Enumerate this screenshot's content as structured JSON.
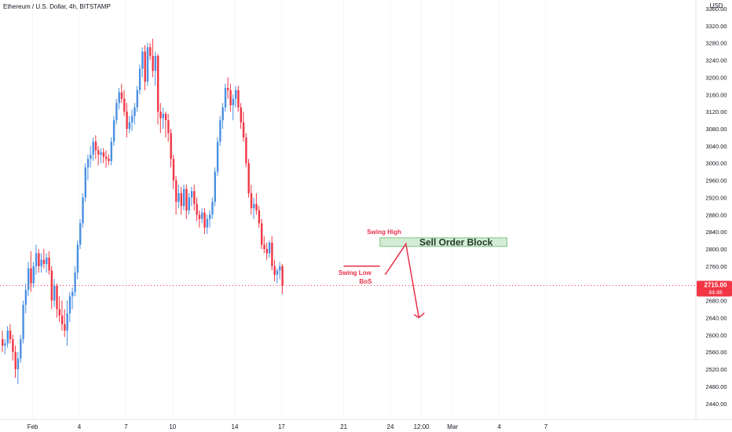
{
  "header": {
    "symbol_title": "Ethereum / U.S. Dollar, 4h, BITSTAMP",
    "currency": "USD"
  },
  "price_tag": {
    "price": "2715.00",
    "countdown": "44:46",
    "color": "#f23645"
  },
  "colors": {
    "up": "#2962ff",
    "up_candle": "#4a90e2",
    "down": "#f23645",
    "annotation": "#e8304a",
    "zone_fill": "#d4ecd6",
    "zone_border": "#7cc47f",
    "grid": "#f0f3fa",
    "axis_text": "#131722"
  },
  "chart_data": {
    "type": "candlestick",
    "title": "Ethereum / U.S. Dollar, 4h, BITSTAMP",
    "ylabel": "USD",
    "ylim": [
      2400,
      3380
    ],
    "grid": false,
    "y_ticks": [
      2440,
      2480,
      2520,
      2560,
      2600,
      2640,
      2680,
      2720,
      2760,
      2800,
      2840,
      2880,
      2920,
      2960,
      3000,
      3040,
      3080,
      3120,
      3160,
      3200,
      3240,
      3280,
      3320,
      3360
    ],
    "x_ticks": [
      {
        "label": "Feb",
        "candle": 12
      },
      {
        "label": "4",
        "candle": 30
      },
      {
        "label": "7",
        "candle": 48
      },
      {
        "label": "10",
        "candle": 66
      },
      {
        "label": "14",
        "candle": 90
      },
      {
        "label": "17",
        "candle": 108
      },
      {
        "label": "21",
        "candle": 132
      },
      {
        "label": "24",
        "candle": 150
      },
      {
        "label": "12:00",
        "candle": 162
      },
      {
        "label": "Mar",
        "candle": 174
      },
      {
        "label": "4",
        "candle": 192
      },
      {
        "label": "7",
        "candle": 210
      }
    ],
    "candles": [
      [
        2590,
        2610,
        2560,
        2575
      ],
      [
        2575,
        2590,
        2555,
        2580
      ],
      [
        2580,
        2620,
        2570,
        2610
      ],
      [
        2610,
        2625,
        2580,
        2590
      ],
      [
        2590,
        2600,
        2540,
        2560
      ],
      [
        2560,
        2575,
        2500,
        2520
      ],
      [
        2520,
        2560,
        2485,
        2545
      ],
      [
        2545,
        2600,
        2535,
        2590
      ],
      [
        2590,
        2680,
        2580,
        2670
      ],
      [
        2670,
        2720,
        2650,
        2705
      ],
      [
        2705,
        2770,
        2690,
        2755
      ],
      [
        2755,
        2795,
        2700,
        2720
      ],
      [
        2720,
        2770,
        2710,
        2760
      ],
      [
        2760,
        2810,
        2740,
        2790
      ],
      [
        2790,
        2800,
        2745,
        2760
      ],
      [
        2760,
        2790,
        2745,
        2775
      ],
      [
        2775,
        2800,
        2755,
        2765
      ],
      [
        2765,
        2790,
        2745,
        2780
      ],
      [
        2780,
        2795,
        2740,
        2750
      ],
      [
        2750,
        2760,
        2660,
        2680
      ],
      [
        2680,
        2730,
        2665,
        2715
      ],
      [
        2715,
        2720,
        2640,
        2660
      ],
      [
        2660,
        2690,
        2630,
        2645
      ],
      [
        2645,
        2680,
        2610,
        2625
      ],
      [
        2625,
        2660,
        2595,
        2610
      ],
      [
        2610,
        2680,
        2575,
        2650
      ],
      [
        2650,
        2700,
        2630,
        2690
      ],
      [
        2690,
        2710,
        2660,
        2700
      ],
      [
        2700,
        2760,
        2690,
        2745
      ],
      [
        2745,
        2820,
        2730,
        2810
      ],
      [
        2810,
        2870,
        2800,
        2860
      ],
      [
        2860,
        2930,
        2850,
        2920
      ],
      [
        2920,
        3000,
        2910,
        2990
      ],
      [
        2990,
        3020,
        2960,
        3010
      ],
      [
        3010,
        3040,
        2990,
        3020
      ],
      [
        3020,
        3060,
        3005,
        3050
      ],
      [
        3050,
        3065,
        3010,
        3030
      ],
      [
        3030,
        3040,
        2995,
        3020
      ],
      [
        3020,
        3035,
        3000,
        3025
      ],
      [
        3025,
        3035,
        3000,
        3015
      ],
      [
        3015,
        3030,
        2990,
        3010
      ],
      [
        3010,
        3020,
        2995,
        3005
      ],
      [
        3005,
        3060,
        2995,
        3050
      ],
      [
        3050,
        3110,
        3040,
        3100
      ],
      [
        3100,
        3150,
        3090,
        3140
      ],
      [
        3140,
        3175,
        3125,
        3165
      ],
      [
        3165,
        3185,
        3140,
        3150
      ],
      [
        3150,
        3170,
        3110,
        3120
      ],
      [
        3120,
        3140,
        3060,
        3080
      ],
      [
        3080,
        3110,
        3070,
        3095
      ],
      [
        3095,
        3125,
        3075,
        3110
      ],
      [
        3110,
        3140,
        3090,
        3130
      ],
      [
        3130,
        3180,
        3120,
        3170
      ],
      [
        3170,
        3230,
        3160,
        3220
      ],
      [
        3220,
        3270,
        3200,
        3260
      ],
      [
        3260,
        3275,
        3170,
        3190
      ],
      [
        3190,
        3280,
        3180,
        3270
      ],
      [
        3270,
        3280,
        3240,
        3250
      ],
      [
        3250,
        3290,
        3200,
        3215
      ],
      [
        3215,
        3260,
        3180,
        3250
      ],
      [
        3250,
        3255,
        3090,
        3120
      ],
      [
        3120,
        3140,
        3070,
        3105
      ],
      [
        3105,
        3130,
        3080,
        3115
      ],
      [
        3115,
        3120,
        3060,
        3100
      ],
      [
        3100,
        3115,
        3050,
        3070
      ],
      [
        3070,
        3080,
        2990,
        3010
      ],
      [
        3010,
        3020,
        2940,
        2960
      ],
      [
        2960,
        2970,
        2880,
        2910
      ],
      [
        2910,
        2950,
        2895,
        2930
      ],
      [
        2930,
        2945,
        2880,
        2900
      ],
      [
        2900,
        2950,
        2890,
        2940
      ],
      [
        2940,
        2950,
        2870,
        2890
      ],
      [
        2890,
        2930,
        2880,
        2920
      ],
      [
        2920,
        2945,
        2900,
        2935
      ],
      [
        2935,
        2950,
        2890,
        2905
      ],
      [
        2905,
        2920,
        2865,
        2880
      ],
      [
        2880,
        2890,
        2850,
        2870
      ],
      [
        2870,
        2895,
        2860,
        2885
      ],
      [
        2885,
        2895,
        2835,
        2850
      ],
      [
        2850,
        2880,
        2835,
        2870
      ],
      [
        2870,
        2890,
        2850,
        2880
      ],
      [
        2880,
        2920,
        2870,
        2910
      ],
      [
        2910,
        2990,
        2900,
        2980
      ],
      [
        2980,
        3060,
        2970,
        3050
      ],
      [
        3050,
        3110,
        3040,
        3100
      ],
      [
        3100,
        3140,
        3080,
        3130
      ],
      [
        3130,
        3185,
        3120,
        3175
      ],
      [
        3175,
        3200,
        3150,
        3170
      ],
      [
        3170,
        3185,
        3120,
        3135
      ],
      [
        3135,
        3160,
        3100,
        3150
      ],
      [
        3150,
        3180,
        3130,
        3170
      ],
      [
        3170,
        3180,
        3120,
        3130
      ],
      [
        3130,
        3140,
        3080,
        3095
      ],
      [
        3095,
        3120,
        3050,
        3060
      ],
      [
        3060,
        3070,
        2990,
        3000
      ],
      [
        3000,
        3010,
        2920,
        2930
      ],
      [
        2930,
        2950,
        2880,
        2895
      ],
      [
        2895,
        2920,
        2870,
        2905
      ],
      [
        2905,
        2930,
        2880,
        2890
      ],
      [
        2890,
        2900,
        2850,
        2860
      ],
      [
        2860,
        2870,
        2800,
        2810
      ],
      [
        2810,
        2830,
        2790,
        2800
      ],
      [
        2800,
        2815,
        2775,
        2790
      ],
      [
        2790,
        2820,
        2780,
        2815
      ],
      [
        2815,
        2830,
        2750,
        2760
      ],
      [
        2760,
        2775,
        2725,
        2740
      ],
      [
        2740,
        2755,
        2720,
        2750
      ],
      [
        2750,
        2770,
        2730,
        2760
      ],
      [
        2760,
        2765,
        2695,
        2715
      ]
    ],
    "annotations": {
      "swing_high": "Swing High",
      "swing_low": "Swing Low",
      "bos": "BoS",
      "zone": {
        "label": "Sell Order Block",
        "price_top": 2826,
        "price_bottom": 2806
      }
    }
  }
}
